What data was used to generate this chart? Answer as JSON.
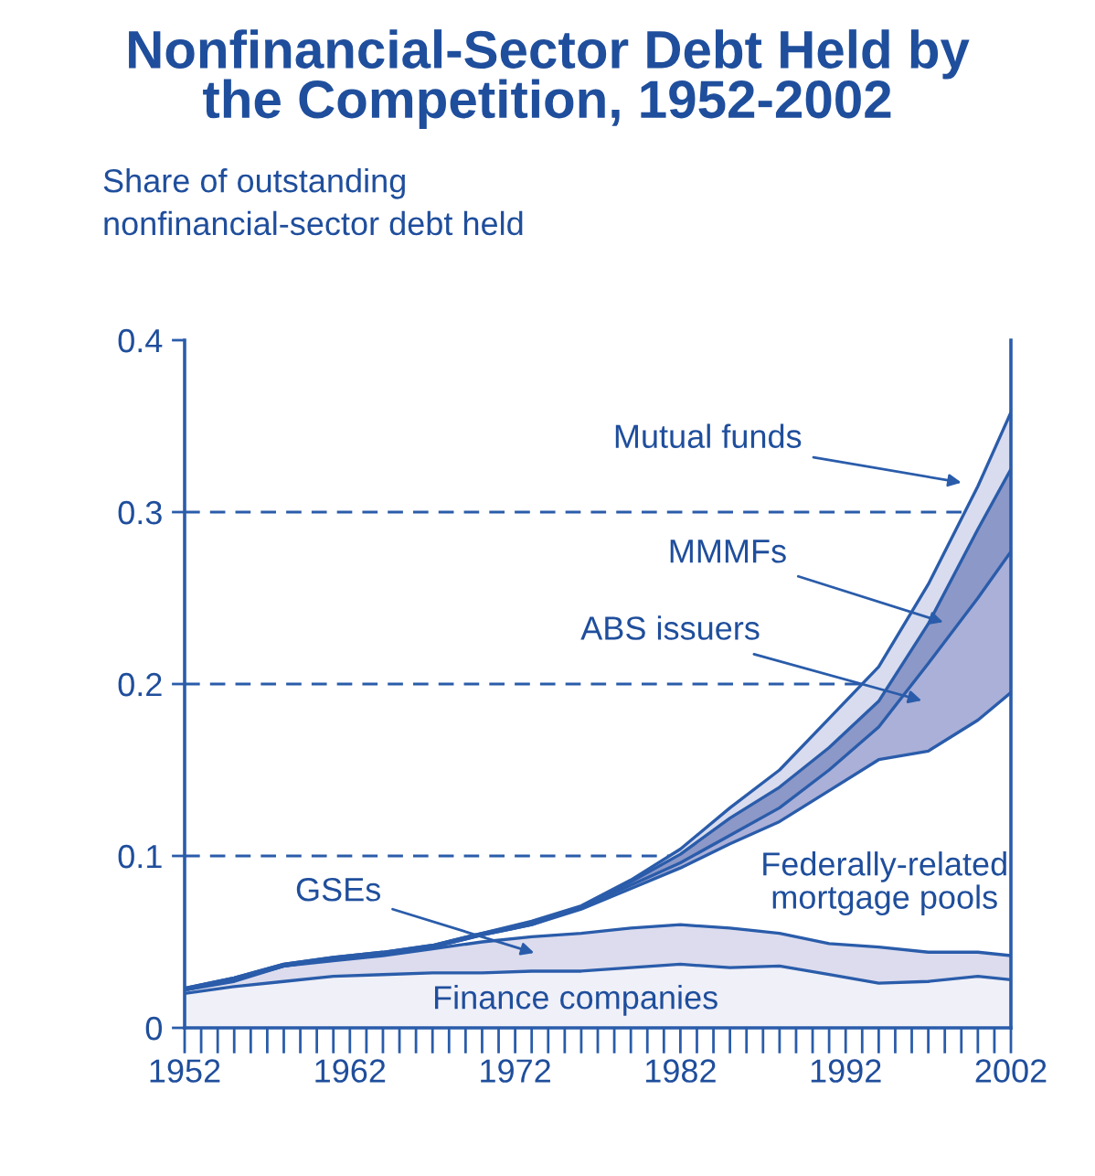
{
  "chart_data": {
    "type": "area",
    "stacked": true,
    "title": "Nonfinancial-Sector Debt Held by\nthe Competition, 1952-2002",
    "ylabel": "Share of outstanding\nnonfinancial-sector debt held",
    "x": [
      1952,
      1955,
      1958,
      1961,
      1964,
      1967,
      1970,
      1973,
      1976,
      1979,
      1982,
      1985,
      1988,
      1991,
      1994,
      1997,
      2000,
      2002
    ],
    "series": [
      {
        "color": "#f0f0f8",
        "values": [
          0.02,
          0.024,
          0.027,
          0.03,
          0.031,
          0.032,
          0.032,
          0.033,
          0.033,
          0.035,
          0.037,
          0.035,
          0.036,
          0.031,
          0.026,
          0.027,
          0.03,
          0.028
        ]
      },
      {
        "color": "#dcdcee",
        "values": [
          0.002,
          0.003,
          0.009,
          0.009,
          0.011,
          0.014,
          0.018,
          0.02,
          0.022,
          0.023,
          0.023,
          0.023,
          0.019,
          0.018,
          0.021,
          0.017,
          0.014,
          0.014
        ]
      },
      {
        "color": "#ffffff",
        "values": [
          0,
          0.001,
          0,
          0.001,
          0.001,
          0.001,
          0.004,
          0.007,
          0.014,
          0.023,
          0.033,
          0.049,
          0.065,
          0.089,
          0.109,
          0.117,
          0.135,
          0.153
        ]
      },
      {
        "color": "#aab0d8",
        "values": [
          0,
          0,
          0,
          0,
          0,
          0,
          0,
          0,
          0.001,
          0.002,
          0.003,
          0.005,
          0.008,
          0.012,
          0.019,
          0.051,
          0.071,
          0.082
        ]
      },
      {
        "color": "#8c98c8",
        "values": [
          0.001,
          0.001,
          0.001,
          0.001,
          0.001,
          0.001,
          0.001,
          0.001,
          0,
          0.002,
          0.005,
          0.01,
          0.012,
          0.013,
          0.015,
          0.023,
          0.04,
          0.048
        ]
      },
      {
        "color": "#d8dcee",
        "values": [
          0,
          0,
          0,
          0,
          0,
          0,
          0,
          0.001,
          0.001,
          0.001,
          0.003,
          0.006,
          0.01,
          0.017,
          0.02,
          0.023,
          0.025,
          0.033
        ]
      }
    ],
    "xlim": [
      1952,
      2002
    ],
    "xticks": [
      1952,
      {
        "value": 1953,
        "label": null
      },
      {
        "value": 1954,
        "label": null
      },
      {
        "value": 1955,
        "label": null
      },
      {
        "value": 1956,
        "label": null
      },
      {
        "value": 1957,
        "label": null
      },
      {
        "value": 1958,
        "label": null
      },
      {
        "value": 1959,
        "label": null
      },
      {
        "value": 1960,
        "label": null
      },
      {
        "value": 1961,
        "label": null
      },
      1962,
      {
        "value": 1963,
        "label": null
      },
      {
        "value": 1964,
        "label": null
      },
      {
        "value": 1965,
        "label": null
      },
      {
        "value": 1966,
        "label": null
      },
      {
        "value": 1967,
        "label": null
      },
      {
        "value": 1968,
        "label": null
      },
      {
        "value": 1969,
        "label": null
      },
      {
        "value": 1970,
        "label": null
      },
      {
        "value": 1971,
        "label": null
      },
      1972,
      {
        "value": 1973,
        "label": null
      },
      {
        "value": 1974,
        "label": null
      },
      {
        "value": 1975,
        "label": null
      },
      {
        "value": 1976,
        "label": null
      },
      {
        "value": 1977,
        "label": null
      },
      {
        "value": 1978,
        "label": null
      },
      {
        "value": 1979,
        "label": null
      },
      {
        "value": 1980,
        "label": null
      },
      {
        "value": 1981,
        "label": null
      },
      1982,
      {
        "value": 1983,
        "label": null
      },
      {
        "value": 1984,
        "label": null
      },
      {
        "value": 1985,
        "label": null
      },
      {
        "value": 1986,
        "label": null
      },
      {
        "value": 1987,
        "label": null
      },
      {
        "value": 1988,
        "label": null
      },
      {
        "value": 1989,
        "label": null
      },
      {
        "value": 1990,
        "label": null
      },
      {
        "value": 1991,
        "label": null
      },
      1992,
      {
        "value": 1993,
        "label": null
      },
      {
        "value": 1994,
        "label": null
      },
      {
        "value": 1995,
        "label": null
      },
      {
        "value": 1996,
        "label": null
      },
      {
        "value": 1997,
        "label": null
      },
      {
        "value": 1998,
        "label": null
      },
      {
        "value": 1999,
        "label": null
      },
      {
        "value": 2000,
        "label": null
      },
      {
        "value": 2001,
        "label": null
      },
      2002
    ],
    "ylim": [
      0,
      0.4
    ],
    "yticks": [
      0,
      0.1,
      0.2,
      0.3,
      0.4
    ],
    "ref_lines": [
      {
        "axis": "y",
        "value": 0.1,
        "line_style": "dashed",
        "color": "#2a5caa"
      },
      {
        "axis": "y",
        "value": 0.2,
        "line_style": "dashed",
        "color": "#2a5caa"
      },
      {
        "axis": "y",
        "value": 0.3,
        "line_style": "dashed",
        "color": "#2a5caa"
      }
    ],
    "annotations": [
      "Mutual funds",
      "MMMFs",
      "ABS issuers",
      "GSEs",
      "Federally-related\nmortgage pools",
      "Finance companies"
    ],
    "grid": false,
    "legend": false
  }
}
